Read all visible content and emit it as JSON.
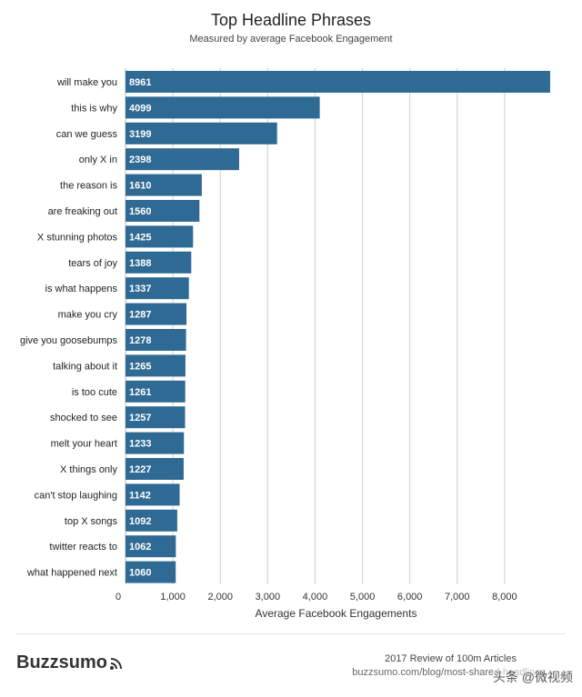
{
  "chart_data": {
    "type": "bar",
    "orientation": "horizontal",
    "title": "Top Headline Phrases",
    "subtitle": "Measured by average Facebook Engagement",
    "xlabel": "Average Facebook Engagements",
    "ylabel": "",
    "xlim": [
      0,
      9000
    ],
    "x_ticks": [
      0,
      1000,
      2000,
      3000,
      4000,
      5000,
      6000,
      7000,
      8000
    ],
    "x_tick_labels": [
      "0",
      "1,000",
      "2,000",
      "3,000",
      "4,000",
      "5,000",
      "6,000",
      "7,000",
      "8,000"
    ],
    "grid": true,
    "bar_color": "#2f6a94",
    "categories": [
      "will make you",
      "this is why",
      "can we guess",
      "only X in",
      "the reason is",
      "are freaking out",
      "X stunning photos",
      "tears of joy",
      "is what happens",
      "make you cry",
      "give you goosebumps",
      "talking about it",
      "is too cute",
      "shocked to see",
      "melt your heart",
      "X things only",
      "can't stop laughing",
      "top X songs",
      "twitter reacts to",
      "what happened next"
    ],
    "values": [
      8961,
      4099,
      3199,
      2398,
      1610,
      1560,
      1425,
      1388,
      1337,
      1287,
      1278,
      1265,
      1261,
      1257,
      1233,
      1227,
      1142,
      1092,
      1062,
      1060
    ],
    "data_labels": [
      "8961",
      "4099",
      "3199",
      "2398",
      "1610",
      "1560",
      "1425",
      "1388",
      "1337",
      "1287",
      "1278",
      "1265",
      "1261",
      "1257",
      "1233",
      "1227",
      "1142",
      "1092",
      "1062",
      "1060"
    ]
  },
  "footer": {
    "brand": "Buzzsumo",
    "brand_icon": "wifi-signal-icon",
    "source_line1": "2017 Review of 100m Articles",
    "source_line2": "buzzsumo.com/blog/most-shared-headlines",
    "watermark": "头条 @微视频"
  }
}
